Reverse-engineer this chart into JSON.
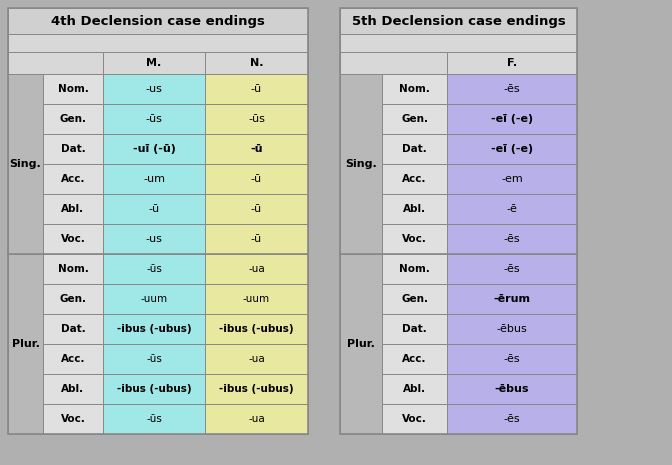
{
  "table1_title": "4th Declension case endings",
  "table2_title": "5th Declension case endings",
  "table1_col_headers": [
    "M.",
    "N."
  ],
  "table2_col_headers": [
    "F."
  ],
  "table1_sing_rows": [
    [
      "Nom.",
      "-us",
      "-ū"
    ],
    [
      "Gen.",
      "-ūs",
      "-ūs"
    ],
    [
      "Dat.",
      "-uī (-ū)",
      "-ū"
    ],
    [
      "Acc.",
      "-um",
      "-ū"
    ],
    [
      "Abl.",
      "-ū",
      "-ū"
    ],
    [
      "Voc.",
      "-us",
      "-ū"
    ]
  ],
  "table1_plur_rows": [
    [
      "Nom.",
      "-ūs",
      "-ua"
    ],
    [
      "Gen.",
      "-uum",
      "-uum"
    ],
    [
      "Dat.",
      "-ibus (-ubus)",
      "-ibus (-ubus)"
    ],
    [
      "Acc.",
      "-ūs",
      "-ua"
    ],
    [
      "Abl.",
      "-ibus (-ubus)",
      "-ibus (-ubus)"
    ],
    [
      "Voc.",
      "-ūs",
      "-ua"
    ]
  ],
  "table2_sing_rows": [
    [
      "Nom.",
      "-ēs"
    ],
    [
      "Gen.",
      "-eī (-e)"
    ],
    [
      "Dat.",
      "-eī (-e)"
    ],
    [
      "Acc.",
      "-em"
    ],
    [
      "Abl.",
      "-ē"
    ],
    [
      "Voc.",
      "-ēs"
    ]
  ],
  "table2_plur_rows": [
    [
      "Nom.",
      "-ēs"
    ],
    [
      "Gen.",
      "-ērum"
    ],
    [
      "Dat.",
      "-ēbus"
    ],
    [
      "Acc.",
      "-ēs"
    ],
    [
      "Abl.",
      "-ēbus"
    ],
    [
      "Voc.",
      "-ēs"
    ]
  ],
  "color_title_bg": "#d0d0d0",
  "color_header_bg": "#d8d8d8",
  "color_group_label": "#b8b8b8",
  "color_case_cell": "#e0e0e0",
  "color_m_col": "#a0e8e8",
  "color_n_col": "#e8e8a0",
  "color_f_col": "#b8b0e8",
  "color_border": "#888888",
  "background_color": "#b0b0b0",
  "t1_sing_bold": [
    2
  ],
  "t1_plur_bold": [
    2,
    4
  ],
  "title_fontsize": 9.5,
  "header_fontsize": 8,
  "case_fontsize": 7.5,
  "data_fontsize": 8,
  "group_fontsize": 8
}
